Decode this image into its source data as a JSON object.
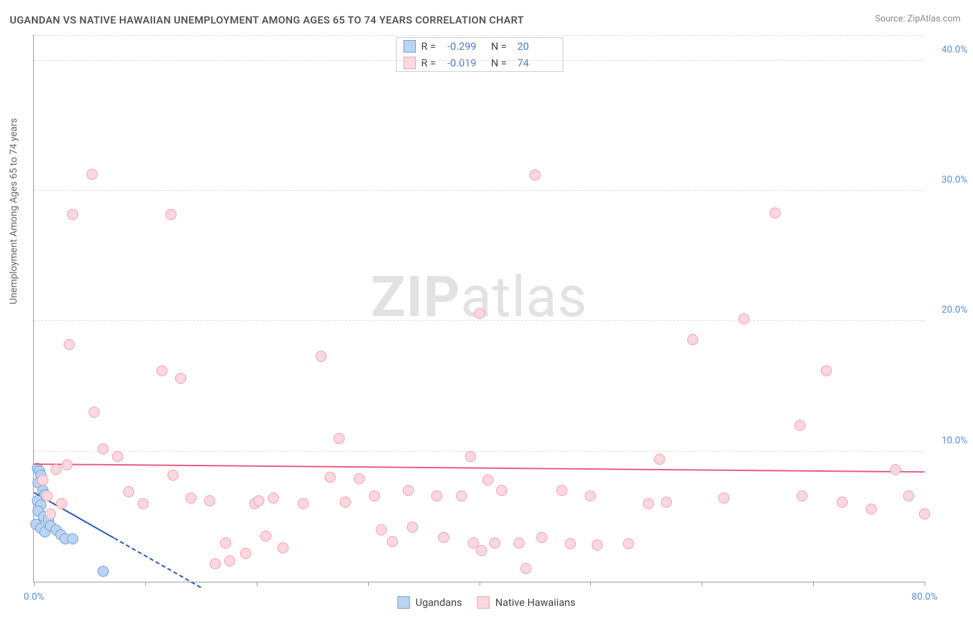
{
  "title": "UGANDAN VS NATIVE HAWAIIAN UNEMPLOYMENT AMONG AGES 65 TO 74 YEARS CORRELATION CHART",
  "source": "Source: ZipAtlas.com",
  "watermark_bold": "ZIP",
  "watermark_light": "atlas",
  "y_axis_label": "Unemployment Among Ages 65 to 74 years",
  "chart": {
    "type": "scatter",
    "xlim": [
      0,
      80
    ],
    "ylim": [
      0,
      42
    ],
    "y_ticks": [
      10,
      20,
      30,
      40
    ],
    "y_tick_labels": [
      "10.0%",
      "20.0%",
      "30.0%",
      "40.0%"
    ],
    "x_ticks": [
      0,
      10,
      20,
      30,
      40,
      50,
      60,
      70,
      80
    ],
    "x_tick_labels": {
      "0": "0.0%",
      "80": "80.0%"
    },
    "background_color": "#ffffff",
    "grid_color": "#dddddd",
    "axis_color": "#999999",
    "tick_label_color": "#5b8fd6",
    "marker_radius": 8,
    "marker_stroke_width": 1.5,
    "series": [
      {
        "name": "Ugandans",
        "fill": "#bcd4ef",
        "stroke": "#6a9fde",
        "trend_color": "#2458b3",
        "trend": {
          "x1": 0,
          "y1": 6.8,
          "x2": 7.2,
          "y2": 3.3,
          "dash_to_x": 15
        },
        "points": [
          [
            0.3,
            8.7
          ],
          [
            0.5,
            8.5
          ],
          [
            0.6,
            8.2
          ],
          [
            0.4,
            7.6
          ],
          [
            0.8,
            7.0
          ],
          [
            1.0,
            6.7
          ],
          [
            0.3,
            6.2
          ],
          [
            0.6,
            5.9
          ],
          [
            0.4,
            5.4
          ],
          [
            0.9,
            5.0
          ],
          [
            1.3,
            4.8
          ],
          [
            0.2,
            4.4
          ],
          [
            0.6,
            4.1
          ],
          [
            1.0,
            3.8
          ],
          [
            1.5,
            4.3
          ],
          [
            2.0,
            4.0
          ],
          [
            2.4,
            3.6
          ],
          [
            2.8,
            3.3
          ],
          [
            3.5,
            3.3
          ],
          [
            6.2,
            0.8
          ]
        ]
      },
      {
        "name": "Native Hawaiians",
        "fill": "#fbd7de",
        "stroke": "#f29fb0",
        "trend_color": "#e65a82",
        "trend": {
          "x1": 0,
          "y1": 9.0,
          "x2": 80,
          "y2": 8.4
        },
        "points": [
          [
            0.8,
            7.8
          ],
          [
            1.2,
            6.6
          ],
          [
            1.5,
            5.2
          ],
          [
            2.0,
            8.6
          ],
          [
            2.5,
            6.0
          ],
          [
            3.0,
            9.0
          ],
          [
            3.2,
            18.2
          ],
          [
            3.5,
            28.2
          ],
          [
            5.2,
            31.3
          ],
          [
            5.4,
            13.0
          ],
          [
            6.2,
            10.2
          ],
          [
            7.5,
            9.6
          ],
          [
            8.5,
            6.9
          ],
          [
            9.8,
            6.0
          ],
          [
            11.5,
            16.2
          ],
          [
            12.3,
            28.2
          ],
          [
            12.5,
            8.2
          ],
          [
            13.2,
            15.6
          ],
          [
            14.1,
            6.4
          ],
          [
            15.8,
            6.2
          ],
          [
            16.3,
            1.4
          ],
          [
            17.2,
            3.0
          ],
          [
            17.6,
            1.6
          ],
          [
            19.0,
            2.2
          ],
          [
            19.8,
            6.0
          ],
          [
            20.2,
            6.2
          ],
          [
            20.8,
            3.5
          ],
          [
            21.5,
            6.4
          ],
          [
            22.4,
            2.6
          ],
          [
            24.2,
            6.0
          ],
          [
            25.8,
            17.3
          ],
          [
            26.6,
            8.0
          ],
          [
            27.4,
            11.0
          ],
          [
            28.0,
            6.1
          ],
          [
            29.2,
            7.9
          ],
          [
            30.6,
            6.6
          ],
          [
            31.2,
            4.0
          ],
          [
            32.2,
            3.1
          ],
          [
            33.6,
            7.0
          ],
          [
            34.0,
            4.2
          ],
          [
            36.2,
            6.6
          ],
          [
            36.8,
            3.4
          ],
          [
            38.4,
            6.6
          ],
          [
            39.2,
            9.6
          ],
          [
            39.5,
            3.0
          ],
          [
            40.0,
            20.6
          ],
          [
            40.2,
            2.4
          ],
          [
            40.8,
            7.8
          ],
          [
            41.4,
            3.0
          ],
          [
            42.0,
            7.0
          ],
          [
            43.6,
            3.0
          ],
          [
            44.2,
            1.0
          ],
          [
            45.0,
            31.2
          ],
          [
            45.6,
            3.4
          ],
          [
            47.4,
            7.0
          ],
          [
            48.2,
            2.9
          ],
          [
            50.0,
            6.6
          ],
          [
            50.6,
            2.8
          ],
          [
            53.4,
            2.9
          ],
          [
            55.2,
            6.0
          ],
          [
            56.2,
            9.4
          ],
          [
            56.8,
            6.1
          ],
          [
            59.2,
            18.6
          ],
          [
            62.0,
            6.4
          ],
          [
            63.8,
            20.2
          ],
          [
            66.6,
            28.3
          ],
          [
            68.8,
            12.0
          ],
          [
            69.0,
            6.6
          ],
          [
            71.2,
            16.2
          ],
          [
            72.6,
            6.1
          ],
          [
            75.2,
            5.6
          ],
          [
            77.4,
            8.6
          ],
          [
            78.6,
            6.6
          ],
          [
            80.0,
            5.2
          ]
        ]
      }
    ],
    "stats": [
      {
        "swatch_fill": "#bcd4ef",
        "swatch_stroke": "#6a9fde",
        "r_label": "R =",
        "r": "-0.299",
        "n_label": "N =",
        "n": "20"
      },
      {
        "swatch_fill": "#fbd7de",
        "swatch_stroke": "#f29fb0",
        "r_label": "R =",
        "r": "-0.019",
        "n_label": "N =",
        "n": "74"
      }
    ]
  },
  "legend": [
    {
      "label": "Ugandans",
      "fill": "#bcd4ef",
      "stroke": "#6a9fde"
    },
    {
      "label": "Native Hawaiians",
      "fill": "#fbd7de",
      "stroke": "#f29fb0"
    }
  ]
}
